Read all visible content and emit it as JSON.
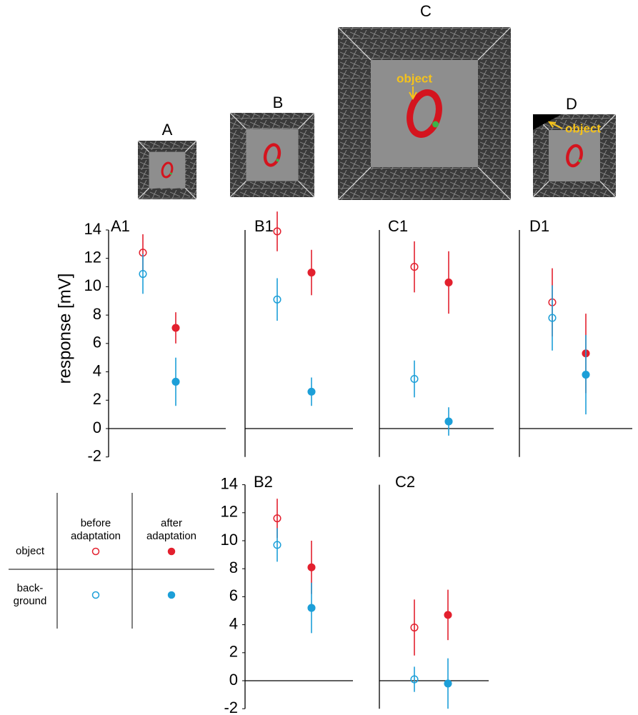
{
  "stimuli": [
    {
      "label": "A"
    },
    {
      "label": "B"
    },
    {
      "label": "C",
      "annotation": "object"
    },
    {
      "label": "D",
      "annotation": "object"
    }
  ],
  "chart_data": [
    {
      "type": "errorbar",
      "title": "A1",
      "y_label": "response [mV]",
      "ylim": [
        -2,
        14
      ],
      "yticks": [
        -2,
        0,
        2,
        4,
        6,
        8,
        10,
        12,
        14
      ],
      "series": [
        {
          "color": "#e3202e",
          "values": [
            12.4,
            7.1
          ],
          "errors": [
            1.3,
            1.1
          ]
        },
        {
          "color": "#1c9fd8",
          "values": [
            10.9,
            3.3
          ],
          "errors": [
            1.4,
            1.7
          ]
        }
      ]
    },
    {
      "type": "errorbar",
      "title": "B1",
      "ylim": [
        -2,
        14
      ],
      "series": [
        {
          "color": "#e3202e",
          "values": [
            13.9,
            11.0
          ],
          "errors": [
            1.4,
            1.6
          ]
        },
        {
          "color": "#1c9fd8",
          "values": [
            9.1,
            2.6
          ],
          "errors": [
            1.5,
            1.0
          ]
        }
      ]
    },
    {
      "type": "errorbar",
      "title": "C1",
      "ylim": [
        -2,
        14
      ],
      "series": [
        {
          "color": "#e3202e",
          "values": [
            11.4,
            10.3
          ],
          "errors": [
            1.8,
            2.2
          ]
        },
        {
          "color": "#1c9fd8",
          "values": [
            3.5,
            0.5
          ],
          "errors": [
            1.3,
            1.0
          ]
        }
      ]
    },
    {
      "type": "errorbar",
      "title": "D1",
      "ylim": [
        -2,
        14
      ],
      "series": [
        {
          "color": "#e3202e",
          "values": [
            8.9,
            5.3
          ],
          "errors": [
            2.4,
            2.8
          ]
        },
        {
          "color": "#1c9fd8",
          "values": [
            7.8,
            3.8
          ],
          "errors": [
            2.3,
            2.8
          ]
        }
      ]
    },
    {
      "type": "errorbar",
      "title": "B2",
      "ylim": [
        -2,
        14
      ],
      "yticks": [
        -2,
        0,
        2,
        4,
        6,
        8,
        10,
        12,
        14
      ],
      "series": [
        {
          "color": "#e3202e",
          "values": [
            11.6,
            8.1
          ],
          "errors": [
            1.4,
            1.9
          ]
        },
        {
          "color": "#1c9fd8",
          "values": [
            9.7,
            5.2
          ],
          "errors": [
            1.2,
            1.8
          ]
        }
      ]
    },
    {
      "type": "errorbar",
      "title": "C2",
      "ylim": [
        -2,
        14
      ],
      "series": [
        {
          "color": "#e3202e",
          "values": [
            3.8,
            4.7
          ],
          "errors": [
            2.0,
            1.8
          ]
        },
        {
          "color": "#1c9fd8",
          "values": [
            0.1,
            -0.2
          ],
          "errors": [
            0.9,
            1.8
          ]
        }
      ]
    }
  ],
  "legend": {
    "columns": [
      [
        "before",
        "adaptation"
      ],
      [
        "after",
        "adaptation"
      ]
    ],
    "rows": [
      {
        "label": [
          "object"
        ],
        "color": "#e3202e"
      },
      {
        "label": [
          "back-",
          "ground"
        ],
        "color": "#1c9fd8"
      }
    ]
  }
}
